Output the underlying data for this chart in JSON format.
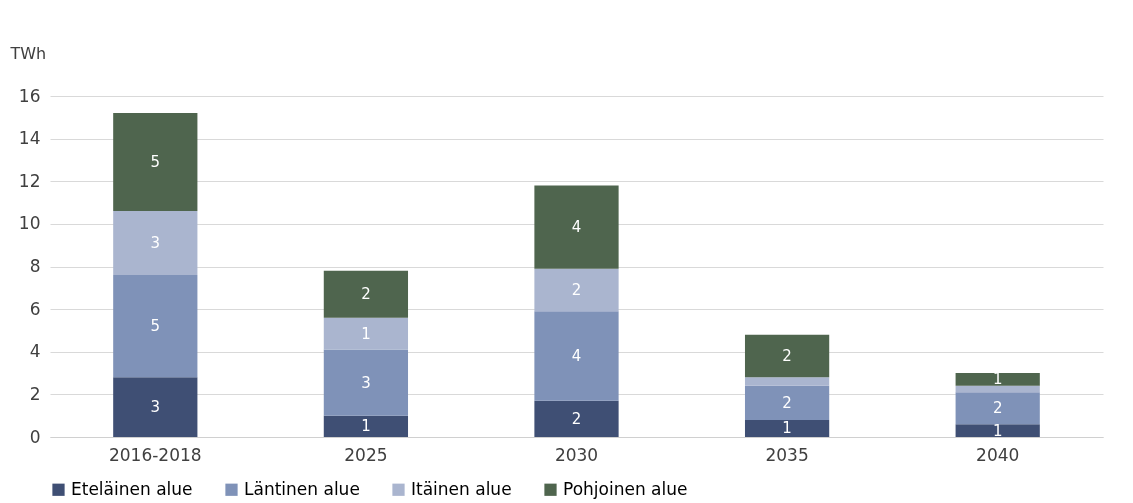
{
  "chart_data": {
    "type": "bar",
    "stacked": true,
    "ylabel": "TWh",
    "categories": [
      "2016-2018",
      "2025",
      "2030",
      "2035",
      "2040"
    ],
    "series": [
      {
        "name": "Eteläinen alue",
        "color": "#3f4f74",
        "values": [
          2.8,
          1.0,
          1.7,
          0.8,
          0.6
        ],
        "value_labels": [
          "3",
          "1",
          "2",
          "1",
          "1"
        ]
      },
      {
        "name": "Läntinen alue",
        "color": "#7f92b8",
        "values": [
          4.8,
          3.1,
          4.2,
          1.6,
          1.5
        ],
        "value_labels": [
          "5",
          "3",
          "4",
          "2",
          "2"
        ]
      },
      {
        "name": "Itäinen alue",
        "color": "#aab5cf",
        "values": [
          3.0,
          1.5,
          2.0,
          0.4,
          0.3
        ],
        "value_labels": [
          "3",
          "1",
          "2",
          null,
          null
        ]
      },
      {
        "name": "Pohjoinen alue",
        "color": "#4f654e",
        "values": [
          4.6,
          2.2,
          3.9,
          2.0,
          0.6
        ],
        "value_labels": [
          "5",
          "2",
          "4",
          "2",
          "1"
        ]
      }
    ],
    "ylim": [
      0,
      16
    ],
    "yticks": [
      0,
      2,
      4,
      6,
      8,
      10,
      12,
      14,
      16
    ],
    "grid": "y",
    "legend": "bottom"
  }
}
